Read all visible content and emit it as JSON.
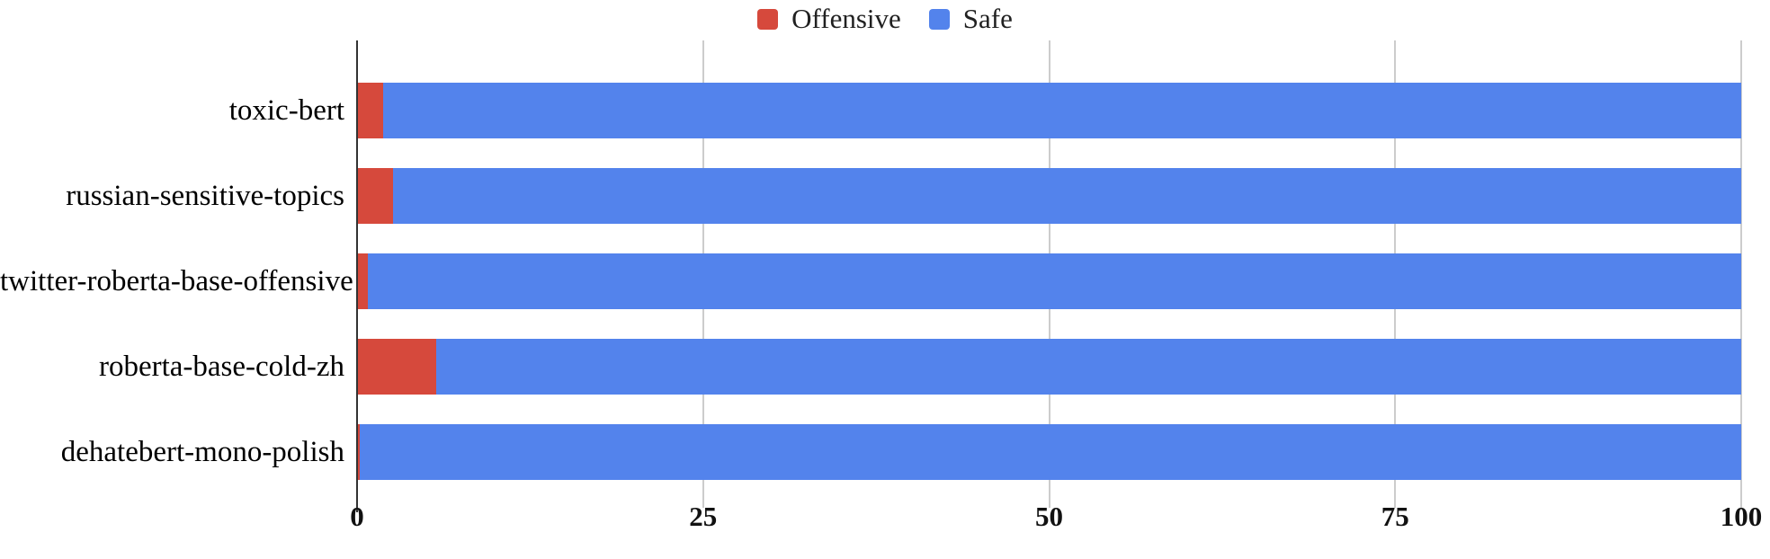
{
  "colors": {
    "offensive": "#d6493c",
    "safe": "#5383ec",
    "axis": "#333333",
    "gridline": "#cccccc",
    "text": "#000000"
  },
  "legend": {
    "items": [
      {
        "label": "Offensive",
        "color": "#d6493c"
      },
      {
        "label": "Safe",
        "color": "#5383ec"
      }
    ]
  },
  "chart_data": {
    "type": "bar",
    "orientation": "horizontal",
    "stacked": true,
    "title": "",
    "xlabel": "",
    "ylabel": "",
    "categories": [
      "toxic-bert",
      "russian-sensitive-topics",
      "twitter-roberta-base-offensive",
      "roberta-base-cold-zh",
      "dehatebert-mono-polish"
    ],
    "series": [
      {
        "name": "Offensive",
        "color": "#d6493c",
        "values": [
          1.9,
          2.6,
          0.8,
          5.7,
          0.2
        ]
      },
      {
        "name": "Safe",
        "color": "#5383ec",
        "values": [
          98.1,
          97.4,
          99.2,
          94.3,
          99.8
        ]
      }
    ],
    "x_ticks": [
      "0",
      "25",
      "50",
      "75",
      "100"
    ],
    "x_tick_values": [
      0,
      25,
      50,
      75,
      100
    ],
    "xlim": [
      0,
      100
    ],
    "grid": true,
    "legend_position": "top"
  }
}
